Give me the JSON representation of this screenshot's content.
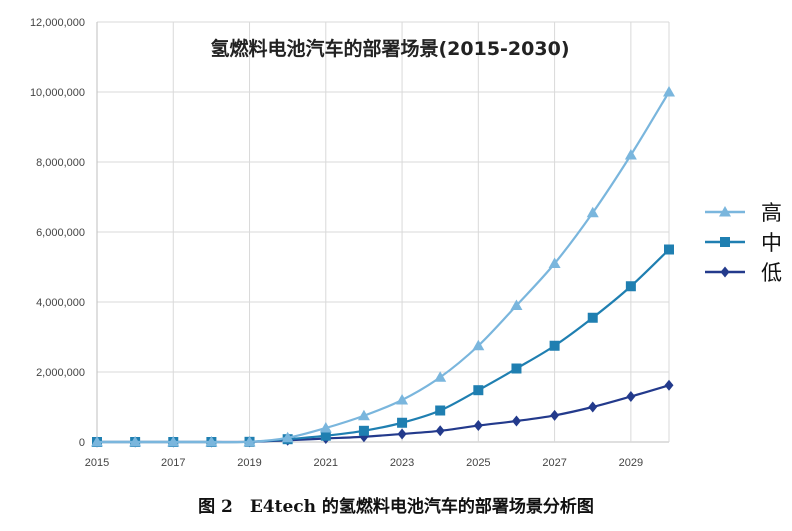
{
  "caption": "图 2　E4tech 的氢燃料电池汽车的部署场景分析图",
  "colors": {
    "high": "#7ab6dd",
    "mid": "#1f7fb1",
    "low": "#233a8c",
    "grid": "#d9d9d9",
    "axis": "#bfbfbf"
  },
  "chart_data": {
    "type": "line",
    "title": "氢燃料电池汽车的部署场景(2015-2030)",
    "xlabel": "",
    "ylabel": "",
    "x": [
      2015,
      2016,
      2017,
      2018,
      2019,
      2020,
      2021,
      2022,
      2023,
      2024,
      2025,
      2026,
      2027,
      2028,
      2029,
      2030
    ],
    "xticks": [
      "2015",
      "2017",
      "2019",
      "2021",
      "2023",
      "2025",
      "2027",
      "2029"
    ],
    "xlim": [
      2015,
      2030
    ],
    "ylim": [
      0,
      12000000
    ],
    "yticks": [
      "0",
      "2,000,000",
      "4,000,000",
      "6,000,000",
      "8,000,000",
      "10,000,000",
      "12,000,000"
    ],
    "legend_position": "right",
    "series": [
      {
        "name": "高",
        "key": "high",
        "marker": "triangle",
        "values": [
          0,
          0,
          0,
          0,
          5000,
          120000,
          400000,
          750000,
          1200000,
          1850000,
          2750000,
          3900000,
          5100000,
          6550000,
          8200000,
          10000000
        ]
      },
      {
        "name": "中",
        "key": "mid",
        "marker": "square",
        "values": [
          0,
          0,
          0,
          0,
          5000,
          80000,
          180000,
          320000,
          550000,
          900000,
          1480000,
          2100000,
          2750000,
          3550000,
          4450000,
          5500000
        ]
      },
      {
        "name": "低",
        "key": "low",
        "marker": "diamond",
        "values": [
          0,
          0,
          0,
          0,
          5000,
          50000,
          100000,
          150000,
          230000,
          320000,
          470000,
          600000,
          760000,
          1000000,
          1300000,
          1620000
        ]
      }
    ]
  }
}
